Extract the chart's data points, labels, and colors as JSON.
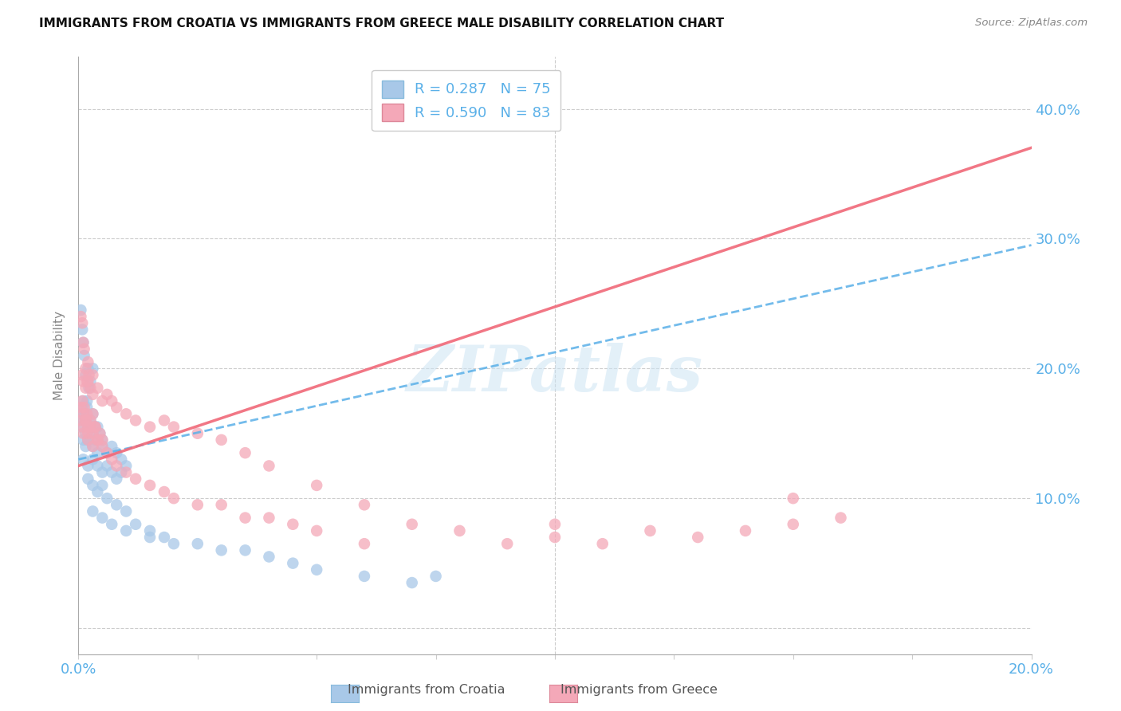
{
  "title": "IMMIGRANTS FROM CROATIA VS IMMIGRANTS FROM GREECE MALE DISABILITY CORRELATION CHART",
  "source": "Source: ZipAtlas.com",
  "ylabel": "Male Disability",
  "xlim": [
    0.0,
    0.2
  ],
  "ylim": [
    -0.02,
    0.44
  ],
  "y_ticks": [
    0.0,
    0.1,
    0.2,
    0.3,
    0.4
  ],
  "y_tick_labels": [
    "",
    "10.0%",
    "20.0%",
    "30.0%",
    "40.0%"
  ],
  "x_ticks": [
    0.0,
    0.025,
    0.05,
    0.075,
    0.1,
    0.125,
    0.15,
    0.175,
    0.2
  ],
  "x_tick_labels": [
    "0.0%",
    "",
    "",
    "",
    "",
    "",
    "",
    "",
    "20.0%"
  ],
  "croatia_color": "#a8c8e8",
  "greece_color": "#f4a8b8",
  "croatia_line_color": "#5ab0e8",
  "greece_line_color": "#f06878",
  "croatia_R": 0.287,
  "croatia_N": 75,
  "greece_R": 0.59,
  "greece_N": 83,
  "watermark": "ZIPatlas",
  "croatia_scatter_x": [
    0.0005,
    0.0008,
    0.001,
    0.0012,
    0.0015,
    0.0018,
    0.002,
    0.0022,
    0.0025,
    0.003,
    0.0005,
    0.0008,
    0.001,
    0.0012,
    0.0015,
    0.0018,
    0.002,
    0.0025,
    0.003,
    0.0035,
    0.0005,
    0.001,
    0.0015,
    0.002,
    0.0025,
    0.003,
    0.0035,
    0.004,
    0.0045,
    0.005,
    0.001,
    0.0015,
    0.002,
    0.003,
    0.004,
    0.005,
    0.006,
    0.007,
    0.008,
    0.009,
    0.001,
    0.002,
    0.003,
    0.004,
    0.005,
    0.006,
    0.007,
    0.008,
    0.009,
    0.01,
    0.002,
    0.003,
    0.004,
    0.005,
    0.006,
    0.008,
    0.01,
    0.012,
    0.015,
    0.018,
    0.02,
    0.025,
    0.03,
    0.035,
    0.04,
    0.045,
    0.05,
    0.06,
    0.07,
    0.075,
    0.003,
    0.005,
    0.007,
    0.01,
    0.015
  ],
  "croatia_scatter_y": [
    0.245,
    0.23,
    0.22,
    0.21,
    0.195,
    0.175,
    0.2,
    0.185,
    0.19,
    0.2,
    0.165,
    0.17,
    0.175,
    0.165,
    0.16,
    0.17,
    0.155,
    0.16,
    0.165,
    0.155,
    0.155,
    0.16,
    0.15,
    0.145,
    0.155,
    0.15,
    0.145,
    0.155,
    0.15,
    0.145,
    0.145,
    0.14,
    0.145,
    0.14,
    0.135,
    0.14,
    0.135,
    0.14,
    0.135,
    0.13,
    0.13,
    0.125,
    0.13,
    0.125,
    0.12,
    0.125,
    0.12,
    0.115,
    0.12,
    0.125,
    0.115,
    0.11,
    0.105,
    0.11,
    0.1,
    0.095,
    0.09,
    0.08,
    0.075,
    0.07,
    0.065,
    0.065,
    0.06,
    0.06,
    0.055,
    0.05,
    0.045,
    0.04,
    0.035,
    0.04,
    0.09,
    0.085,
    0.08,
    0.075,
    0.07
  ],
  "greece_scatter_x": [
    0.0005,
    0.0008,
    0.001,
    0.0012,
    0.0015,
    0.0018,
    0.002,
    0.0022,
    0.0025,
    0.003,
    0.0005,
    0.0008,
    0.001,
    0.0012,
    0.0015,
    0.0018,
    0.002,
    0.0025,
    0.003,
    0.0035,
    0.0005,
    0.001,
    0.0015,
    0.002,
    0.0025,
    0.003,
    0.0035,
    0.004,
    0.0045,
    0.005,
    0.001,
    0.002,
    0.003,
    0.004,
    0.005,
    0.006,
    0.007,
    0.008,
    0.01,
    0.012,
    0.015,
    0.018,
    0.02,
    0.025,
    0.03,
    0.035,
    0.04,
    0.045,
    0.05,
    0.06,
    0.07,
    0.08,
    0.09,
    0.1,
    0.11,
    0.12,
    0.13,
    0.14,
    0.15,
    0.16,
    0.0008,
    0.001,
    0.0015,
    0.002,
    0.003,
    0.004,
    0.005,
    0.006,
    0.007,
    0.008,
    0.01,
    0.012,
    0.015,
    0.018,
    0.02,
    0.025,
    0.03,
    0.035,
    0.04,
    0.05,
    0.06,
    0.1,
    0.15
  ],
  "greece_scatter_y": [
    0.24,
    0.235,
    0.22,
    0.215,
    0.2,
    0.19,
    0.205,
    0.195,
    0.185,
    0.195,
    0.17,
    0.175,
    0.165,
    0.17,
    0.16,
    0.165,
    0.155,
    0.16,
    0.165,
    0.155,
    0.16,
    0.155,
    0.16,
    0.15,
    0.155,
    0.15,
    0.155,
    0.145,
    0.15,
    0.145,
    0.15,
    0.145,
    0.14,
    0.145,
    0.14,
    0.135,
    0.13,
    0.125,
    0.12,
    0.115,
    0.11,
    0.105,
    0.1,
    0.095,
    0.095,
    0.085,
    0.085,
    0.08,
    0.075,
    0.065,
    0.08,
    0.075,
    0.065,
    0.07,
    0.065,
    0.075,
    0.07,
    0.075,
    0.08,
    0.085,
    0.195,
    0.19,
    0.185,
    0.19,
    0.18,
    0.185,
    0.175,
    0.18,
    0.175,
    0.17,
    0.165,
    0.16,
    0.155,
    0.16,
    0.155,
    0.15,
    0.145,
    0.135,
    0.125,
    0.11,
    0.095,
    0.08,
    0.1
  ]
}
